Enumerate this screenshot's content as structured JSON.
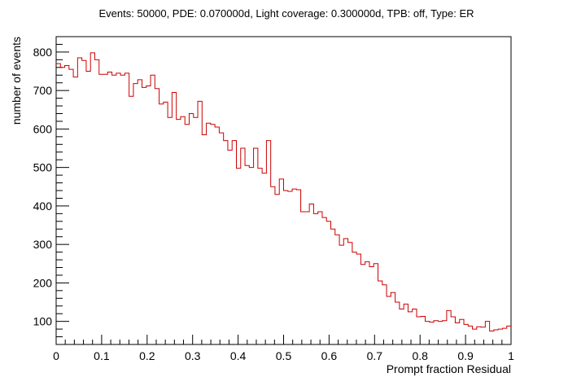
{
  "chart_data": {
    "type": "histogram",
    "title": "Events: 50000, PDE: 0.070000d, Light coverage: 0.300000d, TPB: off, Type: ER",
    "xlabel": "Prompt fraction Residual",
    "ylabel": "number of events",
    "xlim": [
      0,
      1
    ],
    "ylim": [
      40,
      840
    ],
    "x_ticks": [
      0,
      0.1,
      0.2,
      0.3,
      0.4,
      0.5,
      0.6,
      0.7,
      0.8,
      0.9,
      1
    ],
    "x_tick_labels": [
      "0",
      "0.1",
      "0.2",
      "0.3",
      "0.4",
      "0.5",
      "0.6",
      "0.7",
      "0.8",
      "0.9",
      "1"
    ],
    "y_ticks": [
      100,
      200,
      300,
      400,
      500,
      600,
      700,
      800
    ],
    "y_tick_labels": [
      "100",
      "200",
      "300",
      "400",
      "500",
      "600",
      "700",
      "800"
    ],
    "bin_width": 0.01,
    "series": [
      {
        "color": "#cc0000",
        "values": [
          770,
          760,
          765,
          755,
          735,
          785,
          778,
          750,
          798,
          780,
          742,
          742,
          748,
          740,
          745,
          740,
          745,
          685,
          718,
          728,
          708,
          712,
          740,
          705,
          665,
          670,
          630,
          695,
          625,
          632,
          612,
          640,
          630,
          672,
          585,
          615,
          612,
          605,
          590,
          570,
          545,
          570,
          498,
          550,
          505,
          500,
          550,
          498,
          485,
          570,
          450,
          430,
          470,
          440,
          438,
          444,
          442,
          385,
          385,
          405,
          380,
          385,
          370,
          360,
          340,
          325,
          298,
          315,
          305,
          280,
          275,
          248,
          255,
          242,
          250,
          205,
          195,
          165,
          175,
          150,
          132,
          145,
          125,
          132,
          112,
          113,
          100,
          98,
          102,
          100,
          102,
          128,
          112,
          96,
          105,
          92,
          88,
          80,
          86,
          85,
          100,
          75,
          78,
          80,
          82,
          88
        ]
      }
    ]
  }
}
